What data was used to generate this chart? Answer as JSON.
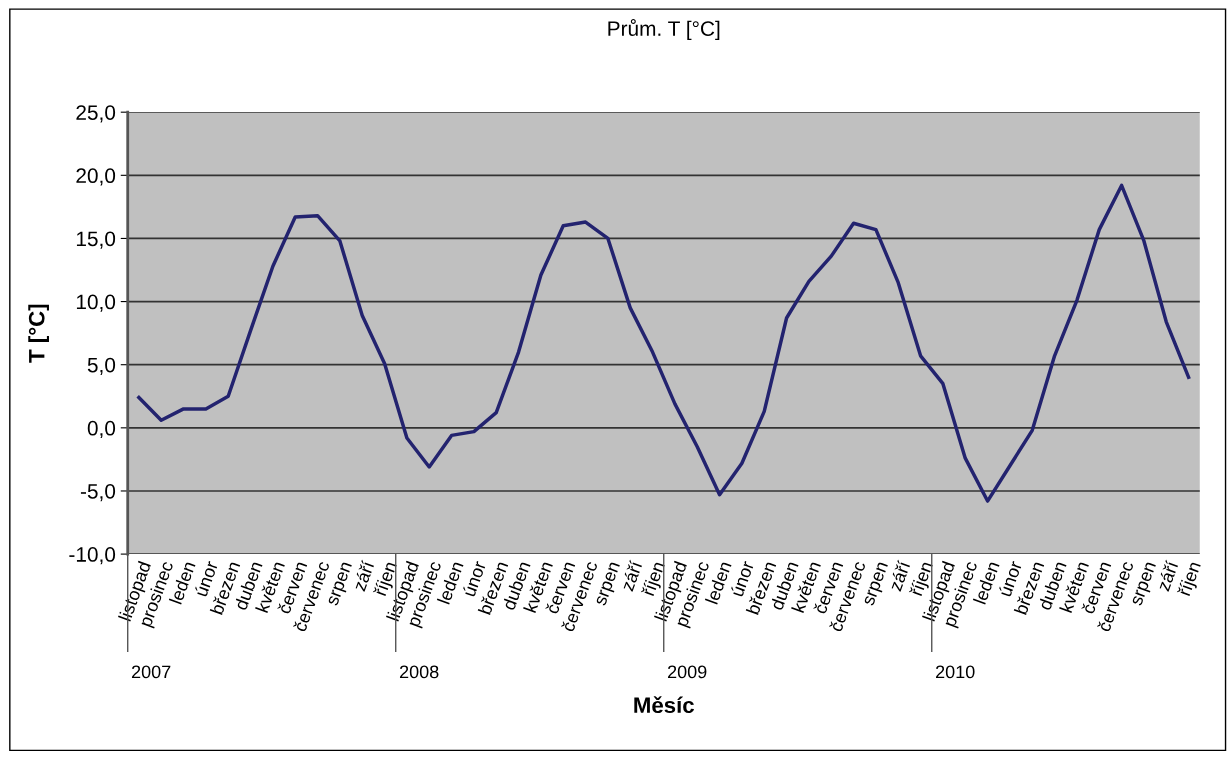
{
  "chart_data": {
    "type": "line",
    "title": "Prům. T [°C]",
    "xlabel": "Měsíc",
    "ylabel": "T [°C]",
    "categories": [
      "listopad",
      "prosinec",
      "leden",
      "únor",
      "březen",
      "duben",
      "květen",
      "červen",
      "červenec",
      "srpen",
      "září",
      "říjen",
      "listopad",
      "prosinec",
      "leden",
      "únor",
      "březen",
      "duben",
      "květen",
      "červen",
      "červenec",
      "srpen",
      "září",
      "říjen",
      "listopad",
      "prosinec",
      "leden",
      "únor",
      "březen",
      "duben",
      "květen",
      "červen",
      "červenec",
      "srpen",
      "září",
      "říjen",
      "listopad",
      "prosinec",
      "leden",
      "únor",
      "březen",
      "duben",
      "květen",
      "červen",
      "červenec",
      "srpen",
      "září",
      "říjen"
    ],
    "series": [
      {
        "color": "#23236f",
        "values": [
          2.4,
          0.6,
          1.5,
          1.5,
          2.5,
          7.7,
          12.8,
          16.7,
          16.8,
          14.8,
          8.9,
          5.1,
          -0.8,
          -3.1,
          -0.6,
          -0.3,
          1.2,
          6.0,
          12.1,
          16.0,
          16.3,
          15.0,
          9.5,
          6.0,
          1.9,
          -1.5,
          -5.3,
          -2.8,
          1.3,
          8.7,
          11.6,
          13.6,
          16.2,
          15.7,
          11.5,
          5.7,
          3.5,
          -2.4,
          -5.8,
          -3.0,
          -0.2,
          5.7,
          10.1,
          15.7,
          19.2,
          14.8,
          8.4,
          4.0
        ]
      }
    ],
    "annotations": [
      "2007",
      "2008",
      "2009",
      "2010"
    ],
    "ylim": [
      -10,
      25
    ],
    "yticks": [
      {
        "value": -10,
        "label": "-10,0"
      },
      {
        "value": -5,
        "label": "-5,0"
      },
      {
        "value": 0,
        "label": "0,0"
      },
      {
        "value": 5,
        "label": "5,0"
      },
      {
        "value": 10,
        "label": "10,0"
      },
      {
        "value": 15,
        "label": "15,0"
      },
      {
        "value": 20,
        "label": "20,0"
      },
      {
        "value": 25,
        "label": "25,0"
      }
    ],
    "grid": "y",
    "legend": false,
    "marker": "none",
    "line_style": "solid"
  }
}
